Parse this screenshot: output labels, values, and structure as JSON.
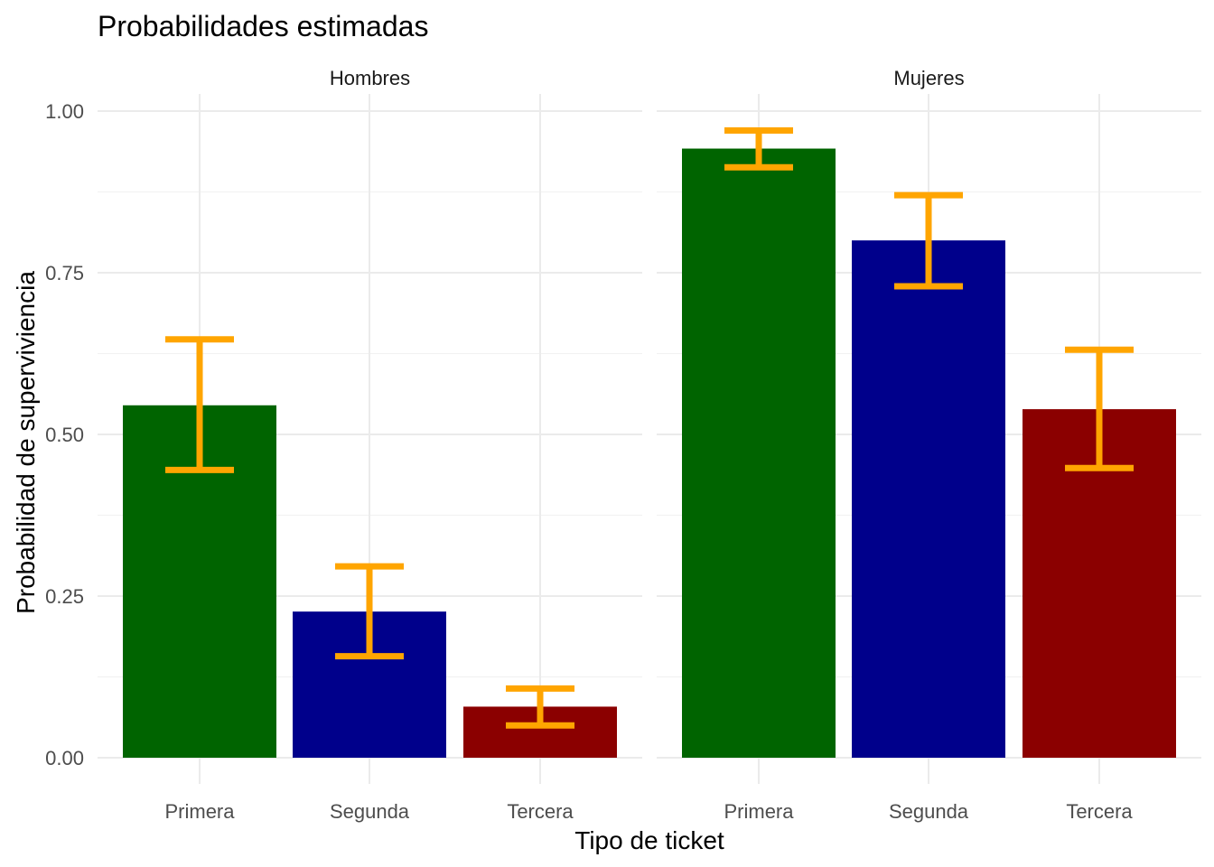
{
  "chart_data": {
    "type": "bar",
    "title": "Probabilidades estimadas",
    "xlabel": "Tipo de ticket",
    "ylabel": "Probabilidad de superviviencia",
    "ylim": [
      0,
      1.0
    ],
    "yticks": [
      "0.00",
      "0.25",
      "0.50",
      "0.75",
      "1.00"
    ],
    "grid": true,
    "categories": [
      "Primera",
      "Segunda",
      "Tercera"
    ],
    "colors": {
      "Primera": "#006400",
      "Segunda": "#00008b",
      "Tercera": "#8b0000",
      "error_bar": "#ffa500"
    },
    "panels": [
      {
        "label": "Hombres",
        "values": [
          0.545,
          0.226,
          0.079
        ],
        "lower": [
          0.445,
          0.157,
          0.05
        ],
        "upper": [
          0.647,
          0.296,
          0.107
        ]
      },
      {
        "label": "Mujeres",
        "values": [
          0.942,
          0.8,
          0.539
        ],
        "lower": [
          0.913,
          0.729,
          0.448
        ],
        "upper": [
          0.97,
          0.87,
          0.631
        ]
      }
    ]
  }
}
